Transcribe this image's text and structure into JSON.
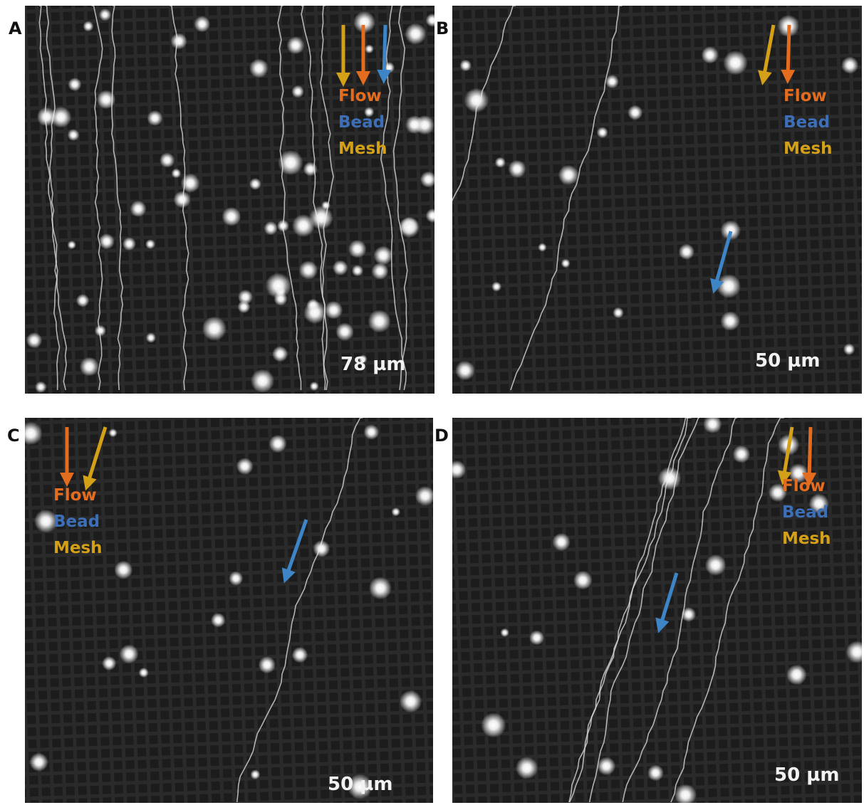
{
  "panels": [
    {
      "label": "A",
      "legend": [
        "Flow",
        "Bead",
        "Mesh"
      ],
      "scale": "78 µm"
    },
    {
      "label": "B",
      "legend": [
        "Flow",
        "Bead",
        "Mesh"
      ],
      "scale": "50 µm"
    },
    {
      "label": "C",
      "legend": [
        "Flow",
        "Bead",
        "Mesh"
      ],
      "scale": "50 µm"
    },
    {
      "label": "D",
      "legend": [
        "Flow",
        "Bead",
        "Mesh"
      ],
      "scale": "50 µm"
    }
  ]
}
